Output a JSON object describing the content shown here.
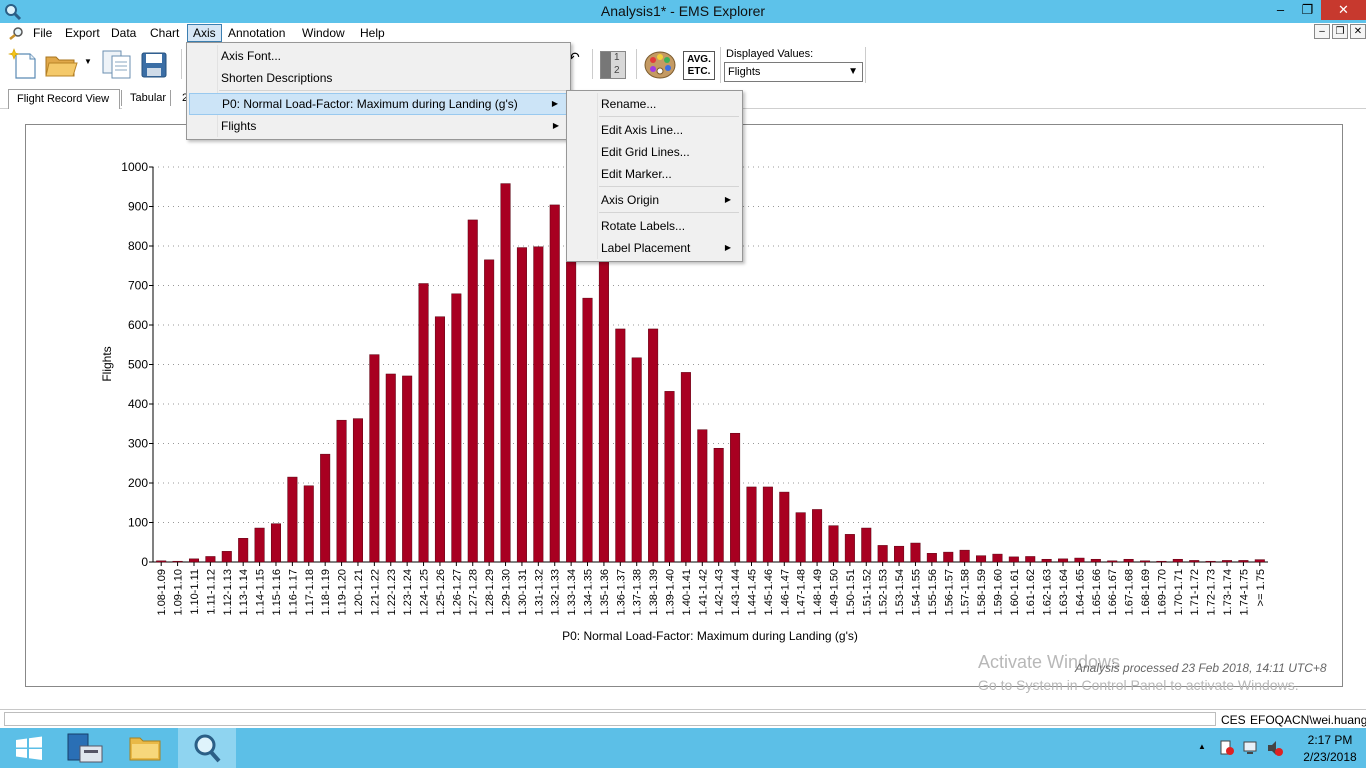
{
  "window": {
    "title": "Analysis1* - EMS Explorer",
    "minimize": "–",
    "maximize": "❐",
    "close": "✕"
  },
  "menubar": {
    "items": [
      "File",
      "Export",
      "Data",
      "Chart",
      "Axis",
      "Annotation",
      "Window",
      "Help"
    ],
    "active": "Axis"
  },
  "mdi": {
    "minimize": "–",
    "restore": "❐",
    "close": "✕"
  },
  "toolbar": {
    "displayed_values_label": "Displayed Values:",
    "displayed_values_selected": "Flights",
    "avg_label_1": "AVG.",
    "avg_label_2": "ETC.",
    "compare_1": "1",
    "compare_2": "2"
  },
  "tabs": {
    "items": [
      "Flight Record View",
      "Tabular"
    ],
    "partial": "2"
  },
  "axis_menu": {
    "items": [
      "Axis Font...",
      "Shorten Descriptions",
      "P0: Normal Load-Factor: Maximum during Landing (g's)",
      "Flights"
    ]
  },
  "axis_submenu": {
    "items": [
      "Rename...",
      "Edit Axis Line...",
      "Edit Grid Lines...",
      "Edit Marker...",
      "Axis Origin",
      "Rotate Labels...",
      "Label Placement"
    ]
  },
  "chart_data": {
    "type": "bar",
    "xlabel": "P0: Normal Load-Factor: Maximum during Landing (g's)",
    "ylabel": "Flights",
    "ylim": [
      0,
      1000
    ],
    "yticks": [
      0,
      100,
      200,
      300,
      400,
      500,
      600,
      700,
      800,
      900,
      1000
    ],
    "grid": true,
    "color": "#a80021",
    "categories": [
      "1.08-1.09",
      "1.09-1.10",
      "1.10-1.11",
      "1.11-1.12",
      "1.12-1.13",
      "1.13-1.14",
      "1.14-1.15",
      "1.15-1.16",
      "1.16-1.17",
      "1.17-1.18",
      "1.18-1.19",
      "1.19-1.20",
      "1.20-1.21",
      "1.21-1.22",
      "1.22-1.23",
      "1.23-1.24",
      "1.24-1.25",
      "1.25-1.26",
      "1.26-1.27",
      "1.27-1.28",
      "1.28-1.29",
      "1.29-1.30",
      "1.30-1.31",
      "1.31-1.32",
      "1.32-1.33",
      "1.33-1.34",
      "1.34-1.35",
      "1.35-1.36",
      "1.36-1.37",
      "1.37-1.38",
      "1.38-1.39",
      "1.39-1.40",
      "1.40-1.41",
      "1.41-1.42",
      "1.42-1.43",
      "1.43-1.44",
      "1.44-1.45",
      "1.45-1.46",
      "1.46-1.47",
      "1.47-1.48",
      "1.48-1.49",
      "1.49-1.50",
      "1.50-1.51",
      "1.51-1.52",
      "1.52-1.53",
      "1.53-1.54",
      "1.54-1.55",
      "1.55-1.56",
      "1.56-1.57",
      "1.57-1.58",
      "1.58-1.59",
      "1.59-1.60",
      "1.60-1.61",
      "1.61-1.62",
      "1.62-1.63",
      "1.63-1.64",
      "1.64-1.65",
      "1.65-1.66",
      "1.66-1.67",
      "1.67-1.68",
      "1.68-1.69",
      "1.69-1.70",
      "1.70-1.71",
      "1.71-1.72",
      "1.72-1.73",
      "1.73-1.74",
      "1.74-1.75",
      ">= 1.75"
    ],
    "values": [
      3,
      2,
      8,
      14,
      27,
      60,
      86,
      97,
      215,
      193,
      273,
      359,
      363,
      525,
      476,
      471,
      705,
      621,
      679,
      866,
      765,
      958,
      796,
      798,
      904,
      760,
      668,
      770,
      590,
      517,
      590,
      432,
      480,
      335,
      288,
      326,
      190,
      190,
      177,
      125,
      133,
      92,
      70,
      86,
      42,
      40,
      48,
      22,
      25,
      30,
      16,
      20,
      13,
      14,
      7,
      8,
      10,
      7,
      3,
      7,
      3,
      2,
      7,
      4,
      2,
      4,
      4,
      6
    ]
  },
  "notes": {
    "processed": "Analysis processed 23 Feb 2018, 14:11 UTC+8",
    "activate_title": "Activate Windows",
    "activate_sub": "Go to System in Control Panel to activate Windows."
  },
  "statusbar": {
    "ces": "CES",
    "user": "EFOQACN\\wei.huang"
  },
  "taskbar": {
    "time": "2:17 PM",
    "date": "2/23/2018"
  }
}
